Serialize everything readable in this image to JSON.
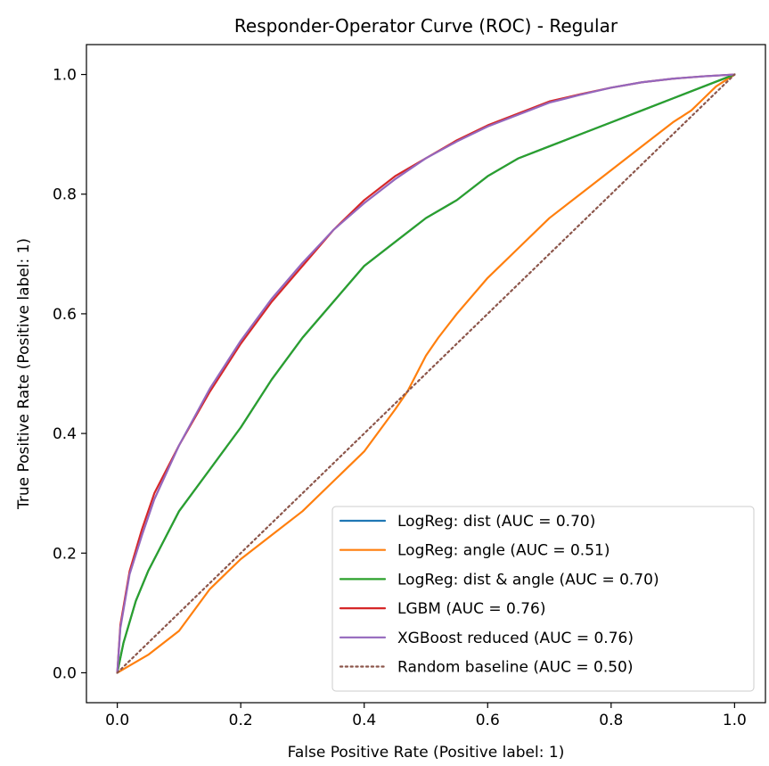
{
  "chart_data": {
    "type": "line",
    "title": "Responder-Operator Curve (ROC) - Regular",
    "xlabel": "False Positive Rate (Positive label: 1)",
    "ylabel": "True Positive Rate (Positive label: 1)",
    "xlim": [
      -0.05,
      1.05
    ],
    "ylim": [
      -0.05,
      1.05
    ],
    "xticks": [
      0.0,
      0.2,
      0.4,
      0.6,
      0.8,
      1.0
    ],
    "yticks": [
      0.0,
      0.2,
      0.4,
      0.6,
      0.8,
      1.0
    ],
    "xtick_labels": [
      "0.0",
      "0.2",
      "0.4",
      "0.6",
      "0.8",
      "1.0"
    ],
    "ytick_labels": [
      "0.0",
      "0.2",
      "0.4",
      "0.6",
      "0.8",
      "1.0"
    ],
    "grid": false,
    "legend_position": "lower-right",
    "series": [
      {
        "name": "LogReg: dist (AUC = 0.70)",
        "color": "#1f77b4",
        "style": "solid",
        "x": [
          0,
          0.01,
          0.03,
          0.05,
          0.08,
          0.1,
          0.15,
          0.2,
          0.25,
          0.3,
          0.35,
          0.4,
          0.45,
          0.5,
          0.55,
          0.6,
          0.65,
          0.7,
          0.75,
          0.8,
          0.85,
          0.9,
          0.95,
          1.0
        ],
        "y": [
          0,
          0.05,
          0.12,
          0.17,
          0.23,
          0.27,
          0.34,
          0.41,
          0.49,
          0.56,
          0.62,
          0.68,
          0.72,
          0.76,
          0.79,
          0.83,
          0.86,
          0.88,
          0.9,
          0.92,
          0.94,
          0.96,
          0.98,
          1.0
        ]
      },
      {
        "name": "LogReg: angle (AUC = 0.51)",
        "color": "#ff7f0e",
        "style": "solid",
        "x": [
          0,
          0.05,
          0.1,
          0.15,
          0.2,
          0.25,
          0.3,
          0.35,
          0.4,
          0.45,
          0.47,
          0.5,
          0.52,
          0.55,
          0.6,
          0.65,
          0.7,
          0.75,
          0.8,
          0.85,
          0.9,
          0.93,
          0.95,
          0.97,
          1.0
        ],
        "y": [
          0,
          0.03,
          0.07,
          0.14,
          0.19,
          0.23,
          0.27,
          0.32,
          0.37,
          0.44,
          0.47,
          0.53,
          0.56,
          0.6,
          0.66,
          0.71,
          0.76,
          0.8,
          0.84,
          0.88,
          0.92,
          0.94,
          0.96,
          0.98,
          1.0
        ]
      },
      {
        "name": "LogReg: dist & angle (AUC = 0.70)",
        "color": "#2ca02c",
        "style": "solid",
        "x": [
          0,
          0.01,
          0.03,
          0.05,
          0.08,
          0.1,
          0.15,
          0.2,
          0.25,
          0.3,
          0.35,
          0.4,
          0.45,
          0.5,
          0.55,
          0.6,
          0.65,
          0.7,
          0.75,
          0.8,
          0.85,
          0.9,
          0.95,
          1.0
        ],
        "y": [
          0,
          0.05,
          0.12,
          0.17,
          0.23,
          0.27,
          0.34,
          0.41,
          0.49,
          0.56,
          0.62,
          0.68,
          0.72,
          0.76,
          0.79,
          0.83,
          0.86,
          0.88,
          0.9,
          0.92,
          0.94,
          0.96,
          0.98,
          1.0
        ]
      },
      {
        "name": "LGBM (AUC = 0.76)",
        "color": "#d62728",
        "style": "solid",
        "x": [
          0,
          0.005,
          0.02,
          0.04,
          0.06,
          0.1,
          0.15,
          0.2,
          0.25,
          0.3,
          0.35,
          0.4,
          0.45,
          0.5,
          0.55,
          0.6,
          0.65,
          0.7,
          0.75,
          0.8,
          0.85,
          0.9,
          0.95,
          1.0
        ],
        "y": [
          0,
          0.08,
          0.17,
          0.24,
          0.3,
          0.38,
          0.47,
          0.55,
          0.62,
          0.68,
          0.74,
          0.79,
          0.83,
          0.86,
          0.89,
          0.915,
          0.935,
          0.955,
          0.967,
          0.978,
          0.987,
          0.993,
          0.997,
          1.0
        ]
      },
      {
        "name": "XGBoost reduced (AUC = 0.76)",
        "color": "#9467bd",
        "style": "solid",
        "x": [
          0,
          0.005,
          0.02,
          0.04,
          0.06,
          0.1,
          0.15,
          0.2,
          0.25,
          0.3,
          0.35,
          0.4,
          0.45,
          0.5,
          0.55,
          0.6,
          0.65,
          0.7,
          0.75,
          0.8,
          0.85,
          0.9,
          0.95,
          1.0
        ],
        "y": [
          0,
          0.075,
          0.165,
          0.23,
          0.29,
          0.38,
          0.475,
          0.555,
          0.625,
          0.685,
          0.74,
          0.785,
          0.825,
          0.86,
          0.888,
          0.913,
          0.933,
          0.953,
          0.966,
          0.978,
          0.987,
          0.993,
          0.997,
          1.0
        ]
      },
      {
        "name": "Random baseline (AUC = 0.50)",
        "color": "#8c564b",
        "style": "dotted",
        "x": [
          0,
          1
        ],
        "y": [
          0,
          1
        ]
      }
    ]
  }
}
